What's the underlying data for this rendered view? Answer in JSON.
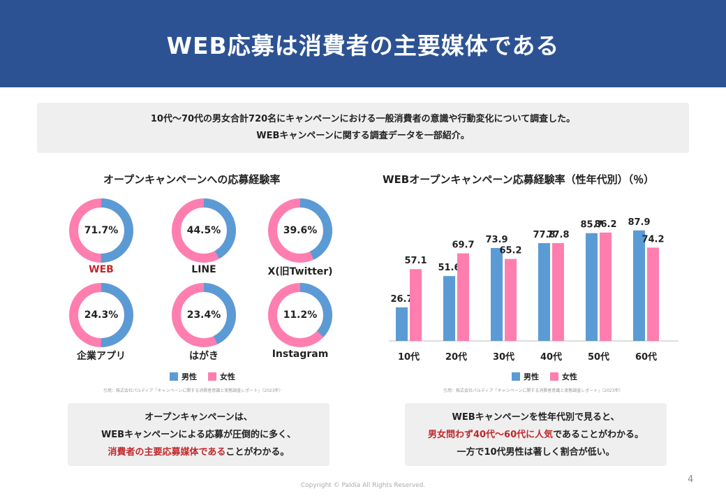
{
  "title": "WEB応募は消費者の主要媒体である",
  "intro": {
    "line1": "10代〜70代の男女合計720名にキャンペーンにおける一般消費者の意識や行動変化について調査した。",
    "line2": "WEBキャンペーンに関する調査データを一部紹介。"
  },
  "left": {
    "title": "オープンキャンペーンへの応募経験率",
    "legend": {
      "male": "男性",
      "female": "女性"
    },
    "citation": "引用：株式会社パルディア「キャンペーンに関する消費者意識と実態調査レポート」（2023年）",
    "callout": {
      "line1": "オープンキャンペーンは、",
      "line2": "WEBキャンペーンによる応募が圧倒的に多く、",
      "line3_red": "消費者の主要応募媒体である",
      "line3_rest": "ことがわかる。"
    }
  },
  "right": {
    "title": "WEBオープンキャンペーン応募経験率（性年代別）（％）",
    "legend": {
      "male": "男性",
      "female": "女性"
    },
    "citation": "引用：株式会社パルディア「キャンペーンに関する消費者意識と実態調査レポート」（2023年）",
    "callout": {
      "line1": "WEBキャンペーンを性年代別で見ると、",
      "line2_red": "男女問わず40代〜60代に人気",
      "line2_rest": "であることがわかる。",
      "line3": "一方で10代男性は著しく割合が低い。"
    }
  },
  "colors": {
    "male": "#5b9bd5",
    "female": "#ff7eb0",
    "header": "#2c5293",
    "accent": "#c0282c"
  },
  "chart_data": [
    {
      "type": "pie",
      "title": "オープンキャンペーンへの応募経験率",
      "series_names": [
        "男性",
        "女性"
      ],
      "items": [
        {
          "label": "WEB",
          "value": 71.7,
          "display": "71.7%"
        },
        {
          "label": "LINE",
          "value": 44.5,
          "display": "44.5%"
        },
        {
          "label": "X(旧Twitter)",
          "value": 39.6,
          "display": "39.6%"
        },
        {
          "label": "企業アプリ",
          "value": 24.3,
          "display": "24.3%"
        },
        {
          "label": "はがき",
          "value": 23.4,
          "display": "23.4%"
        },
        {
          "label": "Instagram",
          "value": 11.2,
          "display": "11.2%"
        }
      ],
      "male_share": [
        0.5,
        0.42,
        0.43,
        0.5,
        0.43,
        0.37
      ]
    },
    {
      "type": "bar",
      "title": "WEBオープンキャンペーン応募経験率（性年代別）（％）",
      "categories": [
        "10代",
        "20代",
        "30代",
        "40代",
        "50代",
        "60代"
      ],
      "series": [
        {
          "name": "男性",
          "values": [
            26.7,
            51.6,
            73.9,
            77.8,
            85.7,
            87.9
          ]
        },
        {
          "name": "女性",
          "values": [
            57.1,
            69.7,
            65.2,
            77.8,
            86.2,
            74.2
          ]
        }
      ],
      "ylim": [
        0,
        100
      ]
    }
  ]
}
